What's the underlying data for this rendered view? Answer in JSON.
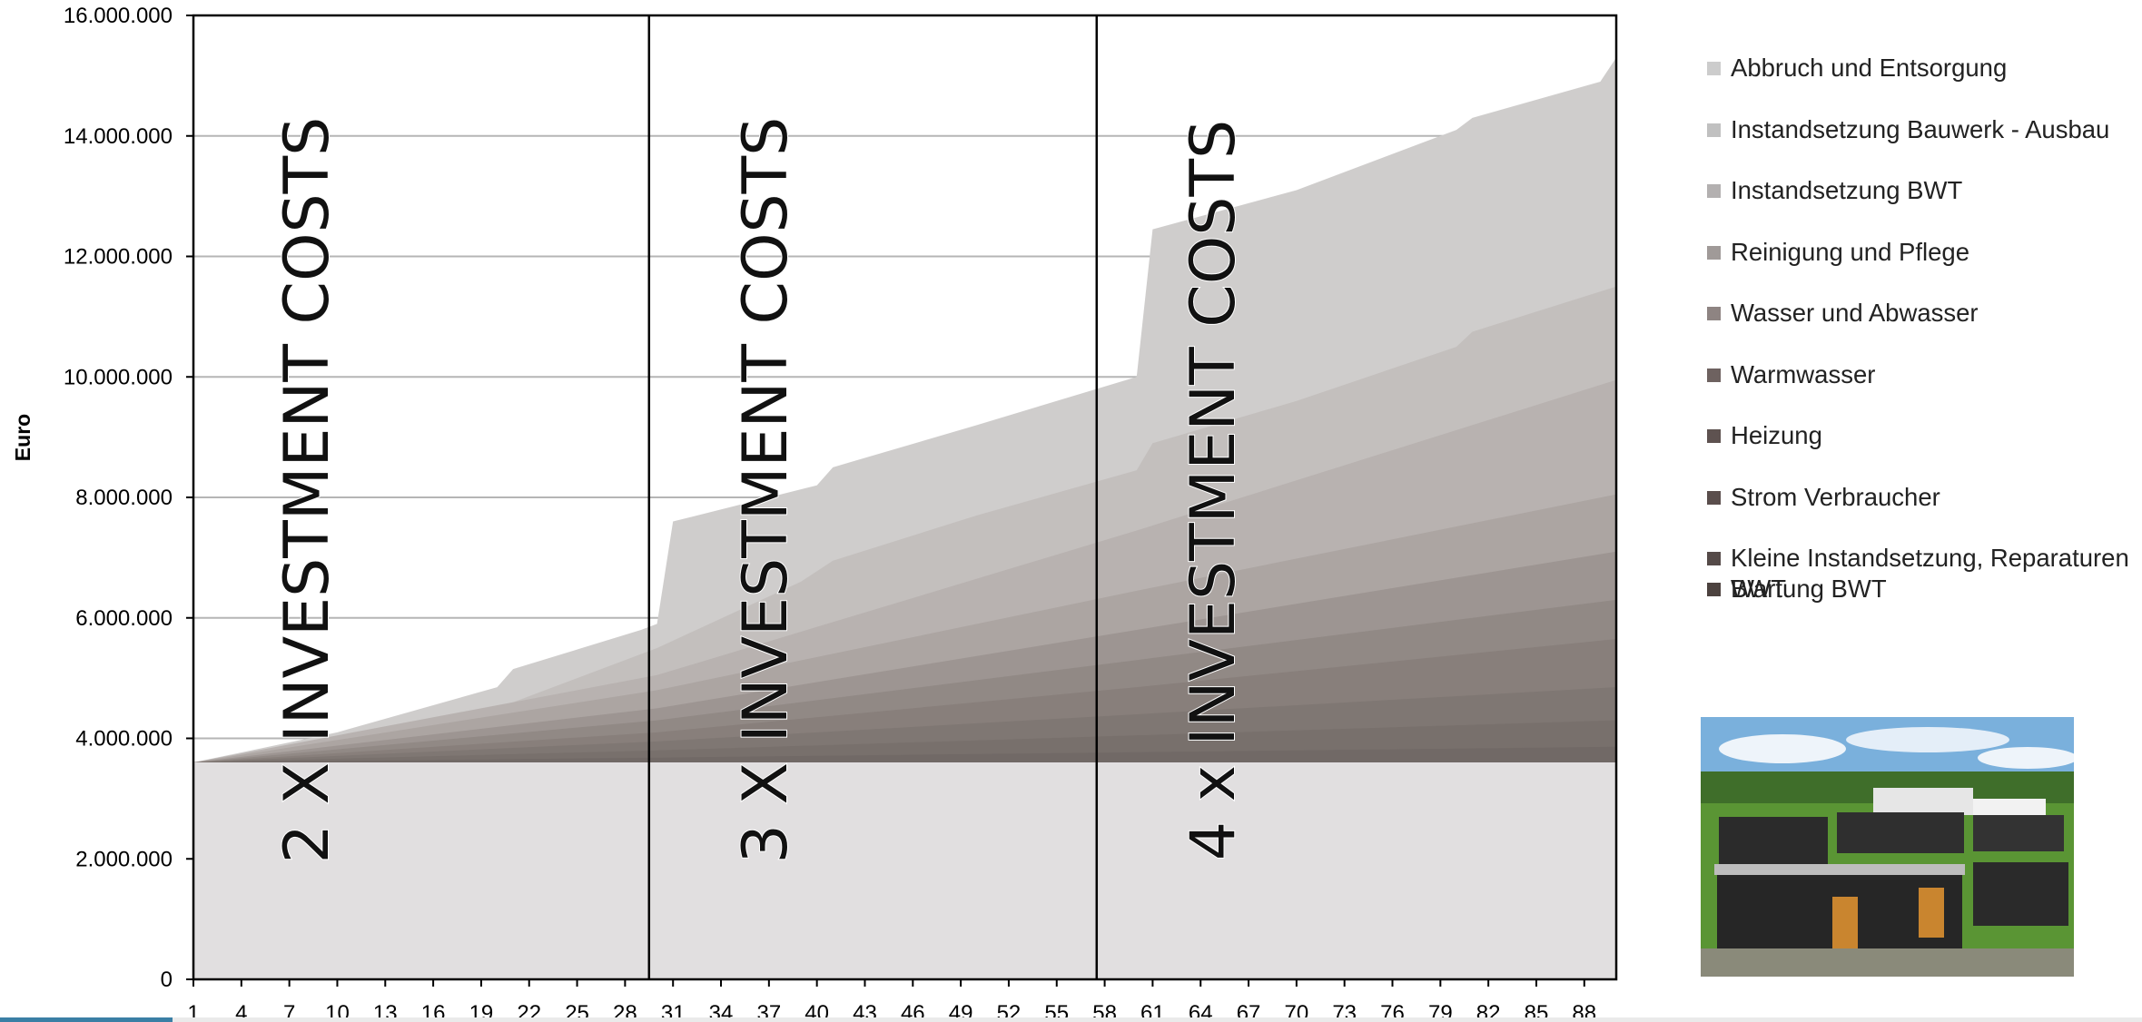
{
  "chart_data": {
    "type": "area",
    "ylabel": "Euro",
    "ylim": [
      0,
      16000000
    ],
    "yticks": [
      "16.000.000",
      "14.000.000",
      "12.000.000",
      "10.000.000",
      "8.000.000",
      "6.000.000",
      "4.000.000",
      "2.000.000",
      "0"
    ],
    "xlim": [
      1,
      90
    ],
    "xticks": [
      "1",
      "4",
      "7",
      "10",
      "13",
      "16",
      "19",
      "22",
      "25",
      "28",
      "31",
      "34",
      "37",
      "40",
      "43",
      "46",
      "49",
      "52",
      "55",
      "58",
      "61",
      "64",
      "67",
      "70",
      "73",
      "76",
      "79",
      "82",
      "85",
      "88"
    ],
    "grid": true,
    "base_investment": 3600000,
    "dividers_x": [
      29.5,
      57.5
    ],
    "annotations": [
      "2 X INVESTMENT COSTS",
      "3 X INVESTMENT COSTS",
      "4 x INVESTMENT COSTS"
    ],
    "legend_position": "right",
    "series": [
      {
        "name": "Abbruch und Entsorgung",
        "color": "#cfcdcc",
        "points": [
          [
            1,
            3600000
          ],
          [
            10,
            4100000
          ],
          [
            20,
            4850000
          ],
          [
            21,
            5150000
          ],
          [
            29,
            5800000
          ],
          [
            30,
            5900000
          ],
          [
            31,
            7600000
          ],
          [
            40,
            8200000
          ],
          [
            41,
            8500000
          ],
          [
            50,
            9200000
          ],
          [
            60,
            10000000
          ],
          [
            61,
            12450000
          ],
          [
            70,
            13100000
          ],
          [
            80,
            14100000
          ],
          [
            81,
            14300000
          ],
          [
            89,
            14900000
          ],
          [
            90,
            15300000
          ]
        ]
      },
      {
        "name": "Instandsetzung Bauwerk - Ausbau",
        "color": "#c3bfbd",
        "points": [
          [
            1,
            3600000
          ],
          [
            10,
            4000000
          ],
          [
            20,
            4500000
          ],
          [
            29,
            5400000
          ],
          [
            30,
            5500000
          ],
          [
            39,
            6600000
          ],
          [
            41,
            6950000
          ],
          [
            50,
            7700000
          ],
          [
            60,
            8450000
          ],
          [
            61,
            8900000
          ],
          [
            70,
            9600000
          ],
          [
            80,
            10500000
          ],
          [
            81,
            10750000
          ],
          [
            90,
            11500000
          ]
        ]
      },
      {
        "name": "Instandsetzung BWT",
        "color": "#b8b2b0",
        "points": [
          [
            1,
            3600000
          ],
          [
            30,
            5050000
          ],
          [
            60,
            7450000
          ],
          [
            90,
            9950000
          ]
        ]
      },
      {
        "name": "Reinigung und Pflege",
        "color": "#aca5a2",
        "points": [
          [
            1,
            3600000
          ],
          [
            30,
            4800000
          ],
          [
            60,
            6450000
          ],
          [
            90,
            8050000
          ]
        ]
      },
      {
        "name": "Wasser und Abwasser",
        "color": "#9d9592",
        "points": [
          [
            1,
            3600000
          ],
          [
            30,
            4500000
          ],
          [
            60,
            5800000
          ],
          [
            90,
            7100000
          ]
        ]
      },
      {
        "name": "Warmwasser",
        "color": "#918985",
        "points": [
          [
            1,
            3600000
          ],
          [
            30,
            4300000
          ],
          [
            60,
            5300000
          ],
          [
            90,
            6300000
          ]
        ]
      },
      {
        "name": "Heizung",
        "color": "#887f7b",
        "points": [
          [
            1,
            3600000
          ],
          [
            30,
            4100000
          ],
          [
            60,
            4850000
          ],
          [
            90,
            5650000
          ]
        ]
      },
      {
        "name": "Strom Verbraucher",
        "color": "#7f7773",
        "points": [
          [
            1,
            3600000
          ],
          [
            30,
            3950000
          ],
          [
            60,
            4400000
          ],
          [
            90,
            4850000
          ]
        ]
      },
      {
        "name": "Kleine Instandsetzung, Reparaturen BWT",
        "color": "#78706c",
        "points": [
          [
            1,
            3600000
          ],
          [
            30,
            3800000
          ],
          [
            60,
            4050000
          ],
          [
            90,
            4300000
          ]
        ]
      },
      {
        "name": "Wartung BWT",
        "color": "#716966",
        "points": [
          [
            1,
            3600000
          ],
          [
            30,
            3680000
          ],
          [
            60,
            3770000
          ],
          [
            90,
            3860000
          ]
        ]
      }
    ],
    "legend_swatches": [
      "#cccccc",
      "#c0c0c0",
      "#b3b0b0",
      "#a09a98",
      "#8e8482",
      "#6e6260",
      "#5e5250",
      "#5a4e4c",
      "#554a48",
      "#4c423f"
    ]
  },
  "photo": {
    "icon": "housing-estate-photo",
    "sky": "#6fa8d8",
    "grass": "#4f8a2a"
  }
}
